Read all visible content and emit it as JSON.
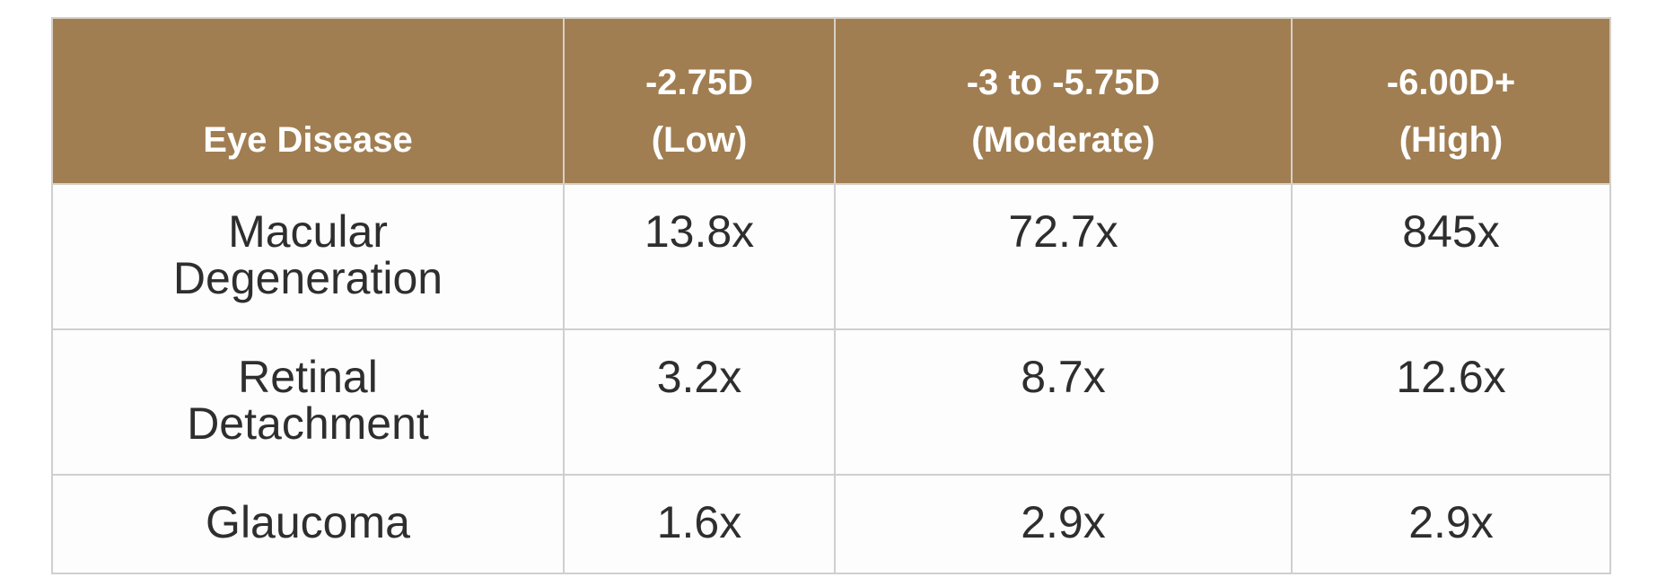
{
  "table": {
    "header": [
      [
        "Eye Disease"
      ],
      [
        "-2.75D",
        "(Low)"
      ],
      [
        "-3 to -5.75D",
        "(Moderate)"
      ],
      [
        "-6.00D+",
        "(High)"
      ]
    ],
    "rows": [
      [
        [
          "Macular",
          "Degeneration"
        ],
        "13.8x",
        "72.7x",
        "845x"
      ],
      [
        [
          "Retinal",
          "Detachment"
        ],
        "3.2x",
        "8.7x",
        "12.6x"
      ],
      [
        [
          "Glaucoma"
        ],
        "1.6x",
        "2.9x",
        "2.9x"
      ]
    ]
  }
}
